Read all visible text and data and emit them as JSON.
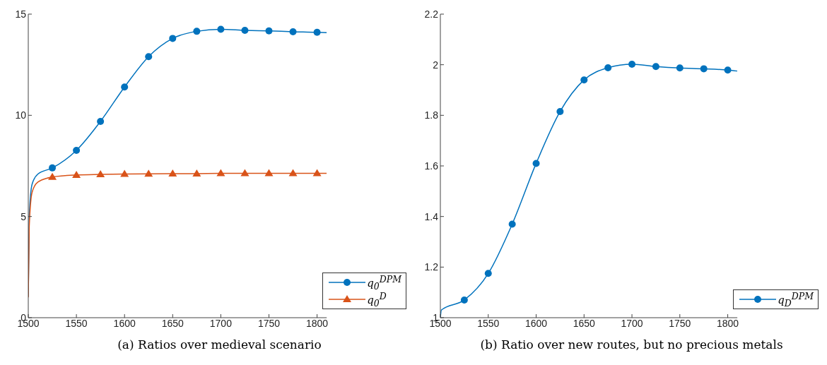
{
  "chart_data": [
    {
      "type": "line",
      "annotations": [
        "(a) Ratios over medieval scenario"
      ],
      "xlim": [
        1500,
        1810
      ],
      "xticks": [
        1500,
        1550,
        1600,
        1650,
        1700,
        1750,
        1800
      ],
      "ylim": [
        0,
        15
      ],
      "yticks": [
        0,
        5,
        10,
        15
      ],
      "grid": false,
      "legend": "bottom right",
      "line_style": "solid",
      "series": [
        {
          "name": "q$_{0}$$^{DPM}$",
          "color": "#0072bd",
          "marker": "circle",
          "x": [
            1500,
            1501,
            1504,
            1510,
            1525,
            1550,
            1575,
            1600,
            1625,
            1650,
            1675,
            1700,
            1725,
            1750,
            1775,
            1800,
            1810
          ],
          "values": [
            1.05,
            5,
            6.6,
            7.1,
            7.4,
            8.27,
            9.7,
            11.4,
            12.9,
            13.8,
            14.15,
            14.25,
            14.2,
            14.17,
            14.13,
            14.1,
            14.08
          ]
        },
        {
          "name": "q$_{0}$$^{D}$",
          "color": "#d95319",
          "marker": "triangle",
          "x": [
            1500,
            1501,
            1504,
            1510,
            1525,
            1550,
            1575,
            1600,
            1625,
            1650,
            1675,
            1700,
            1725,
            1750,
            1775,
            1800,
            1810
          ],
          "values": [
            1.0,
            4.5,
            6.2,
            6.7,
            6.95,
            7.05,
            7.08,
            7.1,
            7.11,
            7.12,
            7.12,
            7.13,
            7.13,
            7.13,
            7.13,
            7.13,
            7.13
          ]
        }
      ]
    },
    {
      "type": "line",
      "annotations": [
        "(b) Ratio over new routes, but no precious metals"
      ],
      "xlim": [
        1500,
        1810
      ],
      "xticks": [
        1500,
        1550,
        1600,
        1650,
        1700,
        1750,
        1800
      ],
      "ylim": [
        1,
        2.2
      ],
      "yticks": [
        1,
        1.2,
        1.4,
        1.6,
        1.8,
        2,
        2.2
      ],
      "grid": false,
      "legend": "bottom right",
      "line_style": "solid",
      "series": [
        {
          "name": "q$_{D}$$^{DPM}$",
          "color": "#0072bd",
          "marker": "circle",
          "x": [
            1500,
            1501,
            1525,
            1550,
            1575,
            1600,
            1625,
            1650,
            1675,
            1700,
            1725,
            1750,
            1775,
            1800,
            1810
          ],
          "values": [
            1.0,
            1.03,
            1.07,
            1.175,
            1.37,
            1.61,
            1.815,
            1.94,
            1.988,
            2.002,
            1.993,
            1.987,
            1.984,
            1.979,
            1.975
          ]
        }
      ]
    }
  ]
}
